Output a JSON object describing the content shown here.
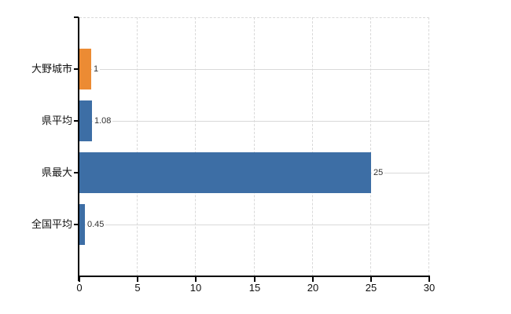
{
  "chart_data": {
    "type": "bar",
    "orientation": "horizontal",
    "title": "",
    "categories": [
      "大野城市",
      "県平均",
      "県最大",
      "全国平均"
    ],
    "values": [
      1,
      1.08,
      25,
      0.45
    ],
    "value_labels": [
      "1",
      "1.08",
      "25",
      "0.45"
    ],
    "bar_colors": [
      "#ec8b33",
      "#3d6ea5",
      "#3d6ea5",
      "#3d6ea5"
    ],
    "xlabel": "",
    "ylabel": "",
    "xlim": [
      0,
      30
    ],
    "x_ticks": [
      0,
      5,
      10,
      15,
      20,
      25,
      30
    ],
    "grid": {
      "vertical": "dashed",
      "horizontal": "solid at category centers",
      "color": "#d9d9d9"
    },
    "legend": false,
    "colors": {
      "highlight_bar": "#ec8b33",
      "default_bar": "#3d6ea5",
      "axis": "#000000",
      "grid": "#d9d9d9",
      "tick_text": "#111111",
      "value_text": "#333333",
      "background": "#ffffff"
    }
  }
}
